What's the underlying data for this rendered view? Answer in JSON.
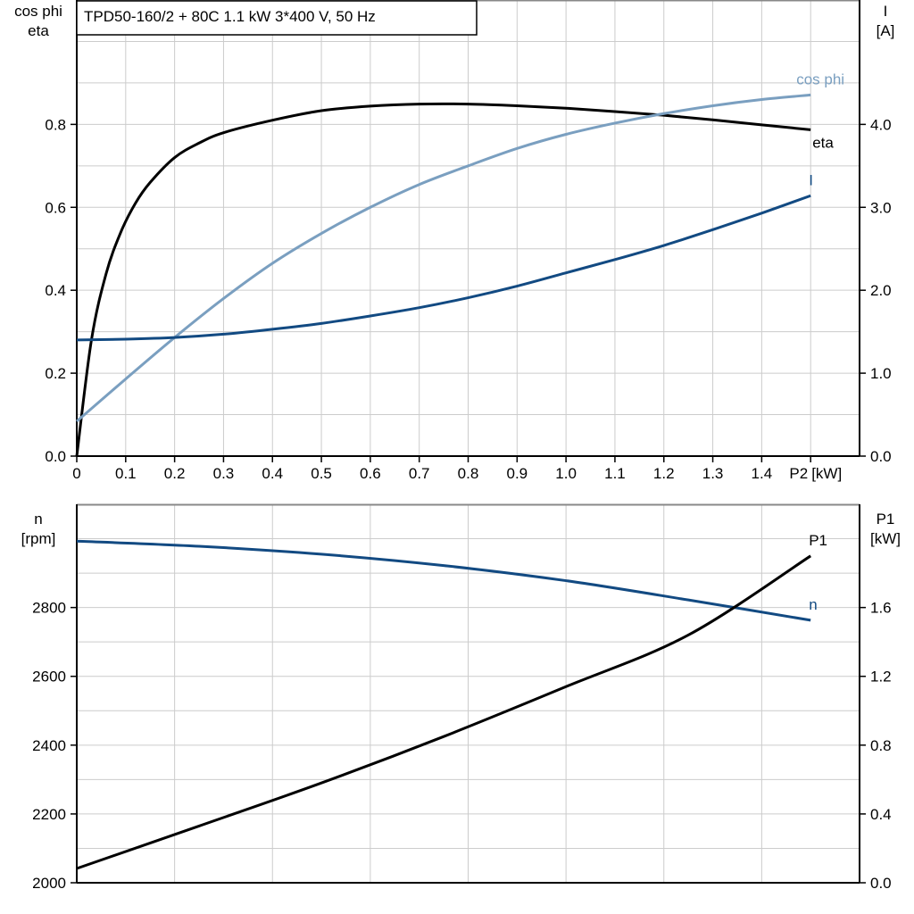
{
  "title": "TPD50-160/2 + 80C   1.1 kW   3*400 V, 50 Hz",
  "colors": {
    "eta": "#000000",
    "cos_phi": "#7a9fc0",
    "I": "#124a82",
    "n": "#124a82",
    "P1": "#000000",
    "grid": "#cccccc"
  },
  "chart_data": [
    {
      "type": "line",
      "xlabel": "P2 [kW]",
      "xlabel_main": "P2",
      "xlabel_unit": "[kW]",
      "ylabel_left": [
        "cos phi",
        "eta"
      ],
      "ylabel_right": [
        "I",
        "[A]"
      ],
      "xlim": [
        0,
        1.6
      ],
      "ylim_left": [
        0,
        1.1
      ],
      "ylim_right": [
        0,
        5.5
      ],
      "grid": true,
      "x_ticks": [
        "0",
        "0.1",
        "0.2",
        "0.3",
        "0.4",
        "0.5",
        "0.6",
        "0.7",
        "0.8",
        "0.9",
        "1.0",
        "1.1",
        "1.2",
        "1.3",
        "1.4"
      ],
      "y_ticks_left": [
        "0.0",
        "0.2",
        "0.4",
        "0.6",
        "0.8"
      ],
      "y_ticks_right": [
        "0.0",
        "1.0",
        "2.0",
        "3.0",
        "4.0"
      ],
      "series": [
        {
          "name": "eta",
          "axis": "left",
          "x": [
            0,
            0.03,
            0.06,
            0.09,
            0.12,
            0.15,
            0.2,
            0.25,
            0.3,
            0.4,
            0.5,
            0.6,
            0.7,
            0.8,
            0.9,
            1.0,
            1.1,
            1.2,
            1.3,
            1.4,
            1.5
          ],
          "y": [
            0,
            0.28,
            0.44,
            0.54,
            0.61,
            0.66,
            0.72,
            0.755,
            0.78,
            0.81,
            0.833,
            0.844,
            0.849,
            0.849,
            0.845,
            0.839,
            0.831,
            0.822,
            0.811,
            0.799,
            0.787
          ]
        },
        {
          "name": "cos phi",
          "axis": "left",
          "x": [
            0,
            0.1,
            0.2,
            0.3,
            0.4,
            0.5,
            0.6,
            0.7,
            0.8,
            0.9,
            1.0,
            1.1,
            1.2,
            1.3,
            1.4,
            1.5
          ],
          "y": [
            0.084,
            0.186,
            0.286,
            0.38,
            0.465,
            0.537,
            0.6,
            0.655,
            0.7,
            0.742,
            0.776,
            0.803,
            0.826,
            0.845,
            0.86,
            0.871
          ]
        },
        {
          "name": "I",
          "axis": "right",
          "x": [
            0,
            0.1,
            0.2,
            0.3,
            0.4,
            0.5,
            0.6,
            0.7,
            0.8,
            0.9,
            1.0,
            1.1,
            1.2,
            1.3,
            1.4,
            1.5
          ],
          "y": [
            1.4,
            1.41,
            1.43,
            1.47,
            1.53,
            1.6,
            1.69,
            1.79,
            1.91,
            2.05,
            2.21,
            2.37,
            2.54,
            2.73,
            2.93,
            3.14
          ]
        }
      ]
    },
    {
      "type": "line",
      "ylabel_left": [
        "n",
        "[rpm]"
      ],
      "ylabel_right": [
        "P1",
        "[kW]"
      ],
      "xlim": [
        0,
        1.6
      ],
      "ylim_left": [
        2000,
        3100
      ],
      "ylim_right": [
        0,
        2.2
      ],
      "grid": true,
      "y_ticks_left": [
        "2000",
        "2200",
        "2400",
        "2600",
        "2800"
      ],
      "y_ticks_right": [
        "0.0",
        "0.4",
        "0.8",
        "1.2",
        "1.6"
      ],
      "series": [
        {
          "name": "n",
          "axis": "left",
          "x": [
            0,
            0.25,
            0.5,
            0.75,
            1.0,
            1.25,
            1.5
          ],
          "y": [
            2993,
            2978,
            2955,
            2922,
            2878,
            2822,
            2763
          ]
        },
        {
          "name": "P1",
          "axis": "right",
          "x": [
            0,
            0.25,
            0.5,
            0.75,
            1.0,
            1.25,
            1.5
          ],
          "y": [
            0.083,
            0.33,
            0.58,
            0.85,
            1.14,
            1.44,
            1.9
          ]
        }
      ]
    }
  ]
}
